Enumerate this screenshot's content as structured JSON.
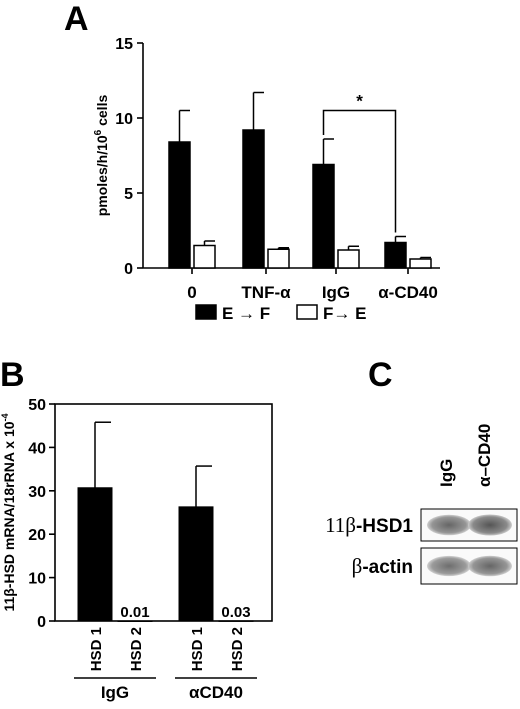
{
  "chart_data": [
    {
      "panel": "A",
      "type": "bar",
      "ylabel_base": "pmoles/h/10",
      "ylabel_sup": "6",
      "ylabel_tail": " cells",
      "ylim": [
        0,
        15
      ],
      "yticks": [
        0,
        5,
        10,
        15
      ],
      "categories": [
        "0",
        "TNF-α",
        "IgG",
        "α-CD40"
      ],
      "series": [
        {
          "name": "E → F",
          "color": "#000000",
          "values": [
            8.4,
            9.2,
            6.9,
            1.7
          ],
          "errors": [
            2.1,
            2.5,
            1.7,
            0.4
          ]
        },
        {
          "name": "F→ E",
          "color": "#ffffff",
          "values": [
            1.5,
            1.25,
            1.2,
            0.6
          ],
          "errors": [
            0.3,
            0.1,
            0.25,
            0.1
          ]
        }
      ],
      "annotation": "*",
      "legend_position": "bottom"
    },
    {
      "panel": "B",
      "type": "bar",
      "ylabel_base": "11β-HSD mRNA/18rRNA x 10",
      "ylabel_sup": "-4",
      "ylim": [
        0,
        50
      ],
      "yticks": [
        0,
        10,
        20,
        30,
        40,
        50
      ],
      "groups": [
        "IgG",
        "αCD40"
      ],
      "bars": [
        {
          "label": "HSD 1",
          "group": "IgG",
          "value": 30.7,
          "error": 15.1,
          "value_label": ""
        },
        {
          "label": "HSD 2",
          "group": "IgG",
          "value": 0.01,
          "error": 0,
          "value_label": "0.01"
        },
        {
          "label": "HSD 1",
          "group": "αCD40",
          "value": 26.3,
          "error": 9.4,
          "value_label": ""
        },
        {
          "label": "HSD 2",
          "group": "αCD40",
          "value": 0.03,
          "error": 0,
          "value_label": "0.03"
        }
      ]
    }
  ],
  "blot": {
    "panel": "C",
    "lanes": [
      "IgG",
      "α–CD40"
    ],
    "rows": [
      {
        "label": "11β-HSD1",
        "label_bold_part": "-HSD1",
        "band_intensity": [
          0.75,
          0.85
        ]
      },
      {
        "label": "β-actin",
        "band_intensity": [
          0.7,
          0.75
        ]
      }
    ]
  }
}
